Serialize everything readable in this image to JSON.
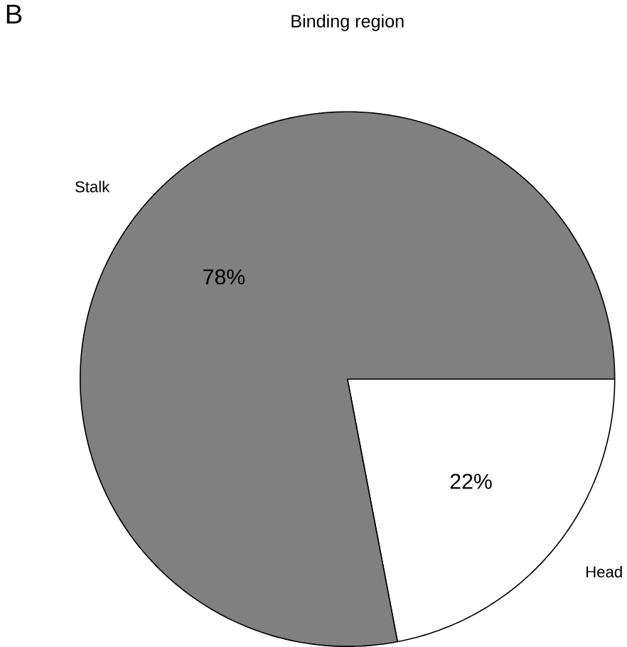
{
  "chart_data": {
    "type": "pie",
    "title": "Binding region",
    "categories": [
      "Head",
      "Stalk"
    ],
    "values": [
      22,
      78
    ],
    "value_labels": [
      "22%",
      "78%"
    ],
    "colors": [
      "#ffffff",
      "#808080"
    ],
    "annotations": [
      "B"
    ]
  }
}
